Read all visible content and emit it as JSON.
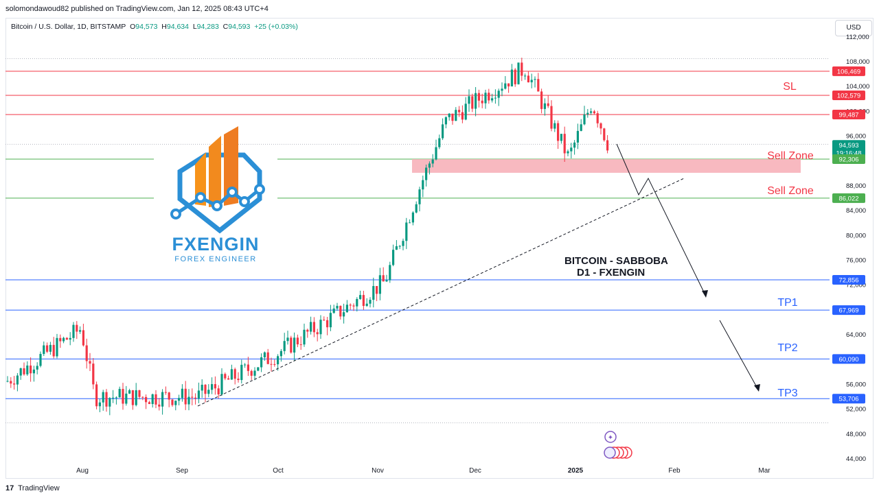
{
  "header": {
    "published": "solomondawoud82 published on TradingView.com, Jan 12, 2025 08:43 UTC+4"
  },
  "legend": {
    "symbol": "Bitcoin / U.S. Dollar, 1D, BITSTAMP",
    "o_label": "O",
    "o": "94,573",
    "h_label": "H",
    "h": "94,634",
    "l_label": "L",
    "l": "94,283",
    "c_label": "C",
    "c": "94,593",
    "change": "+25 (+0.03%)"
  },
  "currency_button": "USD",
  "watermark": {
    "brand": "FXENGIN",
    "tagline": "FOREX ENGINEER"
  },
  "annotations": {
    "sl": "SL",
    "sell_zone_1": "Sell Zone",
    "sell_zone_2": "Sell Zone",
    "tp1": "TP1",
    "tp2": "TP2",
    "tp3": "TP3",
    "title_line1": "BITCOIN - SABBOBA",
    "title_line2": "D1 - FXENGIN"
  },
  "footer": {
    "brand": "TradingView"
  },
  "colors": {
    "up": "#089981",
    "down": "#f23645",
    "sl_line": "#f23645",
    "support_line": "#4caf50",
    "tp_line": "#2962ff",
    "sell_zone_fill": "#f8b5bd",
    "accent_orange": "#f7931a",
    "accent_blue": "#2b8fd6"
  },
  "chart_data": {
    "type": "candlestick",
    "y_axis": {
      "ticks": [
        "112,000",
        "108,000",
        "104,000",
        "100,000",
        "96,000",
        "88,000",
        "84,000",
        "80,000",
        "76,000",
        "72,000",
        "64,000",
        "56,000",
        "52,000",
        "48,000",
        "44,000"
      ],
      "tick_values": [
        112000,
        108000,
        104000,
        100000,
        96000,
        88000,
        84000,
        80000,
        76000,
        72000,
        64000,
        56000,
        52000,
        48000,
        44000
      ],
      "range": [
        43500,
        112500
      ]
    },
    "x_axis": {
      "ticks": [
        "Aug",
        "Sep",
        "Oct",
        "Nov",
        "Dec",
        "2025",
        "Feb",
        "Mar"
      ]
    },
    "levels": [
      {
        "label": "106,469",
        "value": 106469,
        "kind": "sl"
      },
      {
        "label": "102,579",
        "value": 102579,
        "kind": "sl"
      },
      {
        "label": "99,487",
        "value": 99487,
        "kind": "sl"
      },
      {
        "label": "94,593",
        "value": 94593,
        "kind": "current",
        "sublabel": "19:16:48"
      },
      {
        "label": "92,306",
        "value": 92306,
        "kind": "support"
      },
      {
        "label": "86,022",
        "value": 86022,
        "kind": "support"
      },
      {
        "label": "72,856",
        "value": 72856,
        "kind": "tp"
      },
      {
        "label": "67,969",
        "value": 67969,
        "kind": "tp"
      },
      {
        "label": "60,090",
        "value": 60090,
        "kind": "tp"
      },
      {
        "label": "53,706",
        "value": 53706,
        "kind": "tp"
      }
    ],
    "dotted_levels": [
      108500,
      94700,
      49800
    ],
    "sell_zone": {
      "top": 92300,
      "bottom": 90100
    },
    "trend_line": {
      "from_date_index": 0,
      "to_date_index": 1
    },
    "closes_monthly_approx": [
      {
        "date": "Jul 14",
        "close": 56500
      },
      {
        "date": "Aug 1",
        "close": 65000
      },
      {
        "date": "Aug 5",
        "close": 54000
      },
      {
        "date": "Sep 6",
        "close": 54000
      },
      {
        "date": "Oct 1",
        "close": 61000
      },
      {
        "date": "Oct 29",
        "close": 72500
      },
      {
        "date": "Nov 12",
        "close": 88000
      },
      {
        "date": "Nov 22",
        "close": 98500
      },
      {
        "date": "Dec 17",
        "close": 107000
      },
      {
        "date": "Dec 30",
        "close": 92500
      },
      {
        "date": "Jan 7",
        "close": 101500
      },
      {
        "date": "Jan 12",
        "close": 94593
      }
    ]
  }
}
